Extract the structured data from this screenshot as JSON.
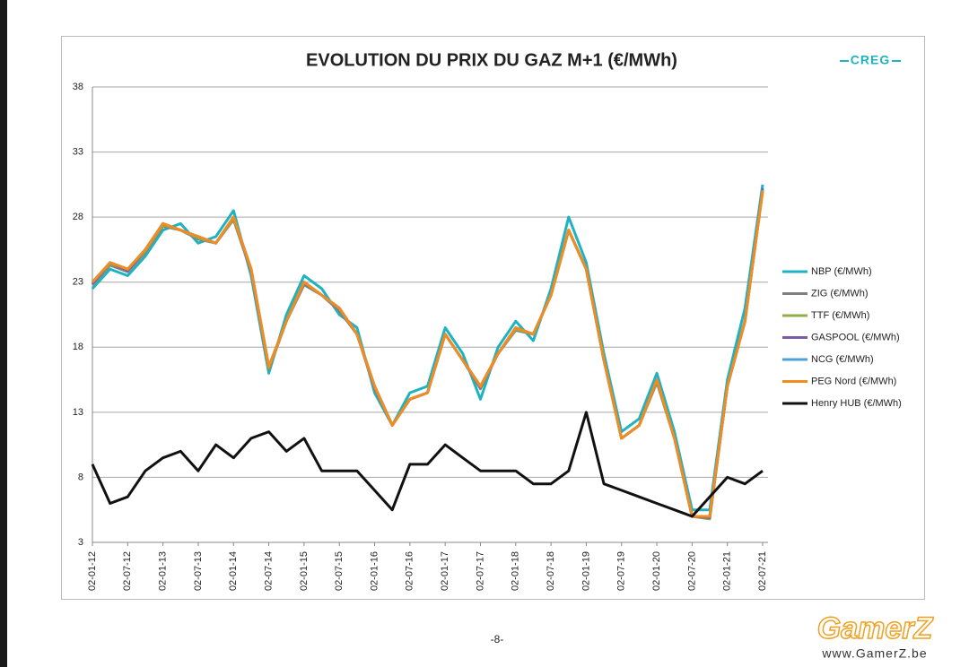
{
  "chart_data": {
    "type": "line",
    "title": "EVOLUTION DU PRIX DU GAZ M+1 (€/MWh)",
    "categories": [
      "02-01-12",
      null,
      "02-07-12",
      null,
      "02-01-13",
      null,
      "02-07-13",
      null,
      "02-01-14",
      null,
      "02-07-14",
      null,
      "02-01-15",
      null,
      "02-07-15",
      null,
      "02-01-16",
      null,
      "02-07-16",
      null,
      "02-01-17",
      null,
      "02-07-17",
      null,
      "02-01-18",
      null,
      "02-07-18",
      null,
      "02-01-19",
      null,
      "02-07-19",
      null,
      "02-01-20",
      null,
      "02-07-20",
      null,
      "02-01-21",
      null,
      "02-07-21"
    ],
    "ylim": [
      3,
      38
    ],
    "yticks": [
      3,
      8,
      13,
      18,
      23,
      28,
      33,
      38
    ],
    "grid": true,
    "legend": "right",
    "series": [
      {
        "name": "NBP (€/MWh)",
        "color": "#1fb3c2",
        "values": [
          22.5,
          24,
          23.5,
          25,
          27,
          27.5,
          26,
          26.5,
          28.5,
          23.5,
          16,
          20.5,
          23.5,
          22.5,
          20.5,
          19.5,
          14.5,
          12,
          14.5,
          15,
          19.5,
          17.5,
          14,
          18,
          20,
          18.5,
          22.5,
          28,
          24.5,
          17.5,
          11.5,
          12.5,
          16,
          11.5,
          5.5,
          5.5,
          15.5,
          21,
          30.5
        ]
      },
      {
        "name": "ZIG (€/MWh)",
        "color": "#808080",
        "values": [
          22.8,
          24.3,
          23.8,
          25.3,
          27.3,
          27,
          26.3,
          26,
          27.8,
          23.8,
          16.3,
          20,
          22.8,
          22,
          20.8,
          19,
          14.8,
          12,
          14,
          14.5,
          19,
          17,
          14.8,
          17.5,
          19.3,
          19,
          22,
          27,
          24,
          17,
          11,
          12,
          15.3,
          11,
          5,
          5,
          15,
          20,
          30
        ]
      },
      {
        "name": "TTF (€/MWh)",
        "color": "#8db04c",
        "values": [
          23,
          24.4,
          24,
          25.4,
          27.4,
          27,
          26.4,
          26,
          27.9,
          24,
          16.4,
          20,
          23,
          22,
          21,
          19,
          15,
          12,
          14,
          14.5,
          19,
          17,
          15,
          17.5,
          19.4,
          19,
          22,
          27,
          24,
          17,
          11,
          12,
          15.4,
          11,
          5,
          4.8,
          15,
          20,
          30
        ]
      },
      {
        "name": "GASPOOL (€/MWh)",
        "color": "#7a5ca6",
        "values": [
          22.9,
          24.5,
          23.9,
          25.5,
          27.5,
          27,
          26.5,
          26,
          28,
          24,
          16.5,
          20,
          23,
          22,
          21,
          19,
          15,
          12,
          14,
          14.5,
          19,
          17,
          15,
          17.5,
          19.5,
          19,
          22,
          27,
          24,
          17,
          11,
          12,
          15.5,
          11,
          5,
          4.9,
          15,
          20,
          30.2
        ]
      },
      {
        "name": "NCG (€/MWh)",
        "color": "#4ba3d8",
        "values": [
          23,
          24.5,
          24,
          25.5,
          27.5,
          27,
          26.5,
          26,
          28,
          24,
          16.5,
          20,
          23,
          22,
          21,
          19,
          15,
          12,
          14,
          14.5,
          19,
          17,
          15,
          17.5,
          19.5,
          19,
          22,
          27,
          24,
          17,
          11,
          12,
          15.5,
          11,
          5,
          5,
          15,
          20,
          30.1
        ]
      },
      {
        "name": "PEG Nord (€/MWh)",
        "color": "#f28c1e",
        "values": [
          23,
          24.5,
          24,
          25.5,
          27.5,
          27,
          26.5,
          26,
          28,
          24,
          16.5,
          20,
          23,
          22,
          21,
          19,
          15,
          12,
          14,
          14.5,
          19,
          17,
          15,
          17.5,
          19.5,
          19,
          22,
          27,
          24,
          17,
          11,
          12,
          15.5,
          11,
          5,
          5,
          15,
          20,
          30
        ]
      },
      {
        "name": "Henry HUB (€/MWh)",
        "color": "#111111",
        "values": [
          9,
          6,
          6.5,
          8.5,
          9.5,
          10,
          8.5,
          10.5,
          9.5,
          11,
          11.5,
          10,
          11,
          8.5,
          8.5,
          8.5,
          7,
          5.5,
          9,
          9,
          10.5,
          9.5,
          8.5,
          8.5,
          8.5,
          7.5,
          7.5,
          8.5,
          13,
          7.5,
          7,
          6.5,
          6,
          5.5,
          5,
          6.5,
          8,
          7.5,
          8.5
        ]
      }
    ]
  },
  "logo": "CREG",
  "page_number": "-8-",
  "watermark": "GamerZ",
  "watermark_url": "www.GamerZ.be"
}
